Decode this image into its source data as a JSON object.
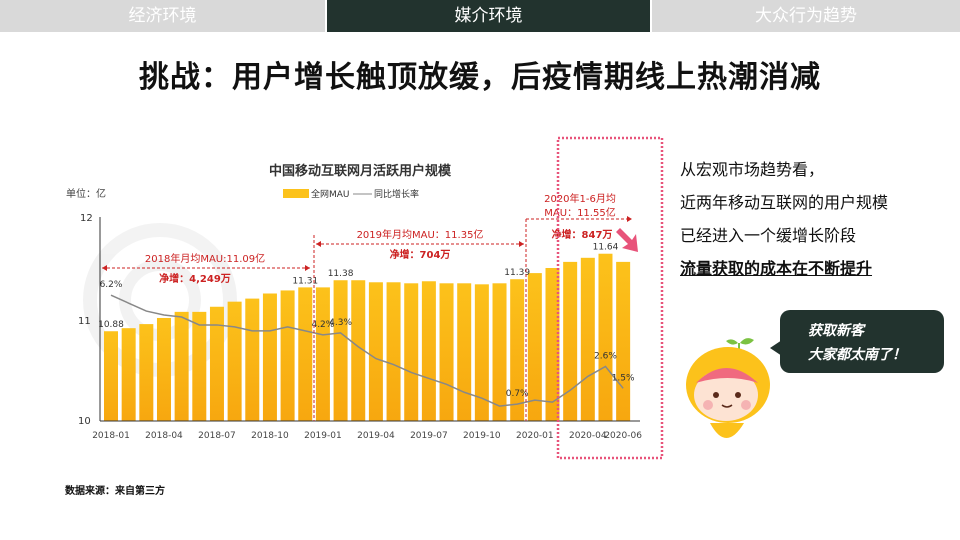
{
  "tabs": [
    {
      "label": "经济环境",
      "active": false
    },
    {
      "label": "媒介环境",
      "active": true
    },
    {
      "label": "大众行为趋势",
      "active": false
    }
  ],
  "title": "挑战：用户增长触顶放缓，后疫情期线上热潮消减",
  "colors": {
    "tab_active": "#22332e",
    "tab_inactive": "#d9d9d9",
    "bar": "#fcc21b",
    "line": "#888888",
    "annotation": "#cc2222",
    "highlight_box": "#e8537a"
  },
  "chart_data": {
    "type": "bar",
    "title": "中国移动互联网月活跃用户规模",
    "unit_label": "单位：亿",
    "legend": [
      "全网MAU",
      "同比增长率"
    ],
    "legend_placement": "top",
    "ylim": [
      10,
      12
    ],
    "yticks": [
      "10",
      "11",
      "12"
    ],
    "xtick_labels": [
      "2018-01",
      "2018-04",
      "2018-07",
      "2018-10",
      "2019-01",
      "2019-04",
      "2019-07",
      "2019-10",
      "2020-01",
      "2020-04",
      "2020-06"
    ],
    "categories": [
      "2018-01",
      "2018-02",
      "2018-03",
      "2018-04",
      "2018-05",
      "2018-06",
      "2018-07",
      "2018-08",
      "2018-09",
      "2018-10",
      "2018-11",
      "2018-12",
      "2019-01",
      "2019-02",
      "2019-03",
      "2019-04",
      "2019-05",
      "2019-06",
      "2019-07",
      "2019-08",
      "2019-09",
      "2019-10",
      "2019-11",
      "2019-12",
      "2020-01",
      "2020-02",
      "2020-03",
      "2020-04",
      "2020-05",
      "2020-06"
    ],
    "series": [
      {
        "name": "全网MAU",
        "type": "bar",
        "values": [
          10.88,
          10.91,
          10.95,
          11.01,
          11.07,
          11.07,
          11.12,
          11.17,
          11.2,
          11.25,
          11.28,
          11.31,
          11.31,
          11.38,
          11.38,
          11.36,
          11.36,
          11.35,
          11.37,
          11.35,
          11.35,
          11.34,
          11.35,
          11.39,
          11.45,
          11.5,
          11.56,
          11.6,
          11.64,
          11.56
        ]
      },
      {
        "name": "同比增长率",
        "type": "line",
        "unit": "%",
        "values": [
          6.2,
          5.8,
          5.4,
          5.2,
          5.1,
          4.7,
          4.7,
          4.6,
          4.4,
          4.4,
          4.6,
          4.4,
          4.2,
          4.3,
          3.6,
          3.0,
          2.7,
          2.3,
          2.0,
          1.7,
          1.3,
          1.0,
          0.6,
          0.7,
          0.9,
          0.8,
          1.4,
          2.1,
          2.6,
          1.5
        ]
      }
    ],
    "bar_labels": [
      {
        "index": 0,
        "text": "10.88"
      },
      {
        "index": 11,
        "text": "11.31"
      },
      {
        "index": 13,
        "text": "11.38"
      },
      {
        "index": 23,
        "text": "11.39"
      },
      {
        "index": 28,
        "text": "11.64"
      }
    ],
    "line_labels": [
      {
        "index": 0,
        "text": "6.2%"
      },
      {
        "index": 12,
        "text": "4.2%"
      },
      {
        "index": 13,
        "text": "4.3%"
      },
      {
        "index": 23,
        "text": "0.7%"
      },
      {
        "index": 28,
        "text": "2.6%"
      },
      {
        "index": 29,
        "text": "1.5%"
      }
    ],
    "annotations": [
      {
        "period": "2018",
        "line1": "2018年月均MAU:11.09亿",
        "line2": "净增：4,249万"
      },
      {
        "period": "2019",
        "line1": "2019年月均MAU：11.35亿",
        "line2": "净增：704万"
      },
      {
        "period": "2020H1",
        "line1": "2020年1-6月均",
        "line2": "MAU：11.55亿",
        "line3": "净增：847万"
      }
    ]
  },
  "right_text": {
    "lines": [
      "从宏观市场趋势看，",
      "近两年移动互联网的用户规模",
      "已经进入一个缓增长阶段"
    ],
    "emphasis": "流量获取的成本在不断提升"
  },
  "bubble": {
    "line1": "获取新客",
    "line2": "大家都太南了！"
  },
  "source": "数据来源：来自第三方"
}
